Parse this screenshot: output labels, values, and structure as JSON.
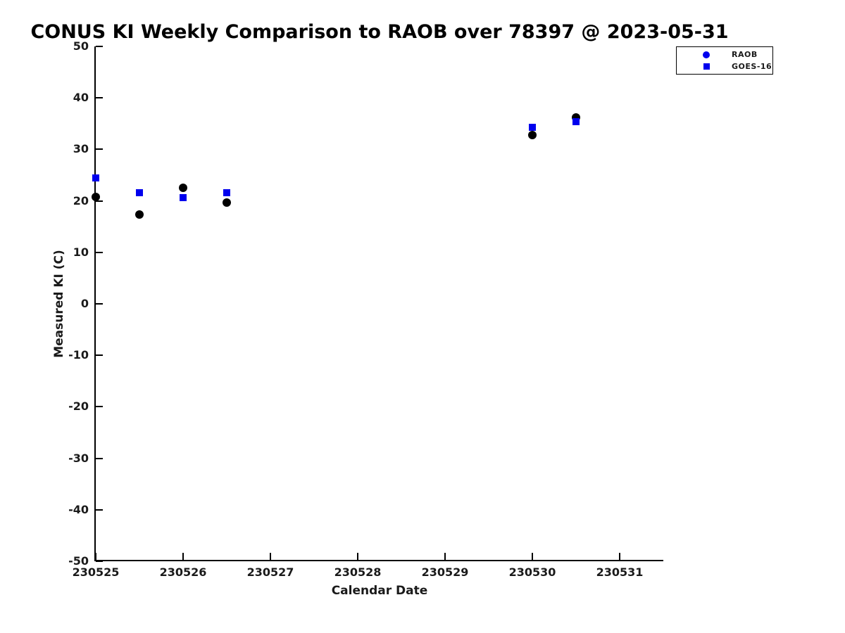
{
  "chart_data": {
    "type": "scatter",
    "title": "CONUS KI Weekly Comparison to RAOB over 78397 @ 2023-05-31",
    "xlabel": "Calendar Date",
    "ylabel": "Measured KI (C)",
    "xlim": [
      230525,
      230531.5
    ],
    "ylim": [
      -50,
      50
    ],
    "x_ticks": [
      230525,
      230526,
      230527,
      230528,
      230529,
      230530,
      230531
    ],
    "y_ticks": [
      -50,
      -40,
      -30,
      -20,
      -10,
      0,
      10,
      20,
      30,
      40,
      50
    ],
    "grid": false,
    "legend": {
      "position": "top-right-outside",
      "items": [
        {
          "label": "RAOB",
          "marker": "circle",
          "color": "#0000ee"
        },
        {
          "label": "GOES-16",
          "marker": "square",
          "color": "#0000ee"
        }
      ]
    },
    "series": [
      {
        "name": "RAOB",
        "marker": "circle",
        "color": "#000000",
        "x": [
          230525,
          230525.5,
          230526,
          230526.5,
          230530,
          230530.5
        ],
        "y": [
          20.8,
          17.3,
          22.5,
          19.7,
          32.8,
          36.2
        ]
      },
      {
        "name": "GOES-16",
        "marker": "square",
        "color": "#0000ee",
        "x": [
          230525,
          230525.5,
          230526,
          230526.5,
          230530,
          230530.5
        ],
        "y": [
          24.5,
          21.6,
          20.6,
          21.6,
          34.3,
          35.4
        ]
      }
    ]
  },
  "colors": {
    "axis": "#000000",
    "tick_text": "#1a1a1a",
    "background": "#ffffff"
  }
}
